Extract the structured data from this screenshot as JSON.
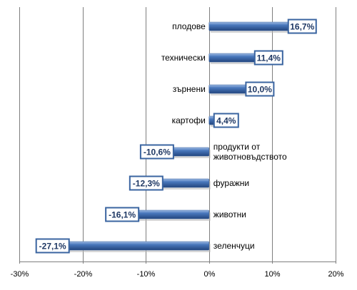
{
  "chart_data": {
    "type": "bar",
    "orientation": "horizontal",
    "categories": [
      "плодове",
      "технически",
      "зърнени",
      "картофи",
      "продукти от животновъдството",
      "фуражни",
      "животни",
      "зеленчуци"
    ],
    "category_lines": [
      [
        "плодове"
      ],
      [
        "технически"
      ],
      [
        "зърнени"
      ],
      [
        "картофи"
      ],
      [
        "продукти от",
        "животновъдството"
      ],
      [
        "фуражни"
      ],
      [
        "животни"
      ],
      [
        "зеленчуци"
      ]
    ],
    "values": [
      16.7,
      11.4,
      10.0,
      4.4,
      -10.6,
      -12.3,
      -16.1,
      -27.1
    ],
    "data_labels": [
      "16,7%",
      "11,4%",
      "10,0%",
      "4,4%",
      "-10,6%",
      "-12,3%",
      "-16,1%",
      "-27,1%"
    ],
    "xlim": [
      -30,
      20
    ],
    "xticks": [
      -30,
      -20,
      -10,
      0,
      10,
      20
    ],
    "xtick_labels": [
      "-30%",
      "-20%",
      "-10%",
      "0%",
      "10%",
      "20%"
    ],
    "grid": "vertical",
    "bar_color": "#3a64a0",
    "title": "",
    "xlabel": "",
    "ylabel": ""
  }
}
